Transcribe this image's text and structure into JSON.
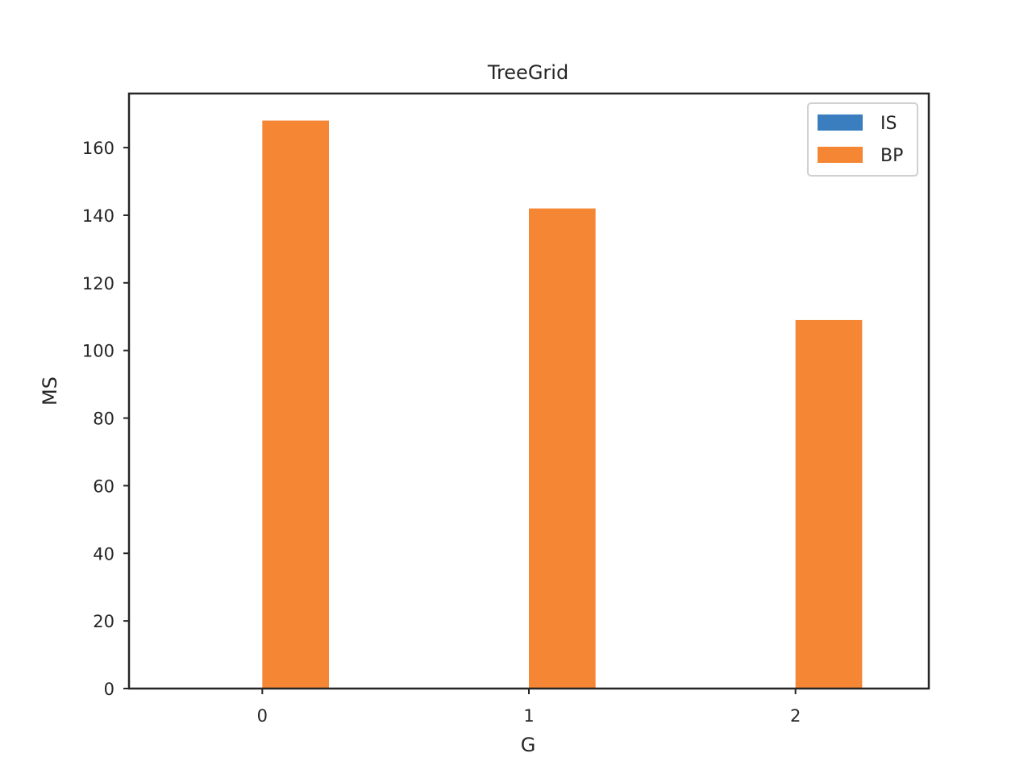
{
  "chart_data": {
    "type": "bar",
    "title": "TreeGrid",
    "xlabel": "G",
    "ylabel": "MS",
    "categories": [
      "0",
      "1",
      "2"
    ],
    "series": [
      {
        "name": "IS",
        "values": [
          0,
          0,
          0
        ],
        "color": "#3a7ebf"
      },
      {
        "name": "BP",
        "values": [
          168,
          142,
          109
        ],
        "color": "#f58634"
      }
    ],
    "ylim": [
      0,
      176
    ],
    "yticks": [
      0,
      20,
      40,
      60,
      80,
      100,
      120,
      140,
      160
    ],
    "xlim": [
      -0.5,
      2.5
    ],
    "grid": false,
    "legend_position": "top-right"
  }
}
